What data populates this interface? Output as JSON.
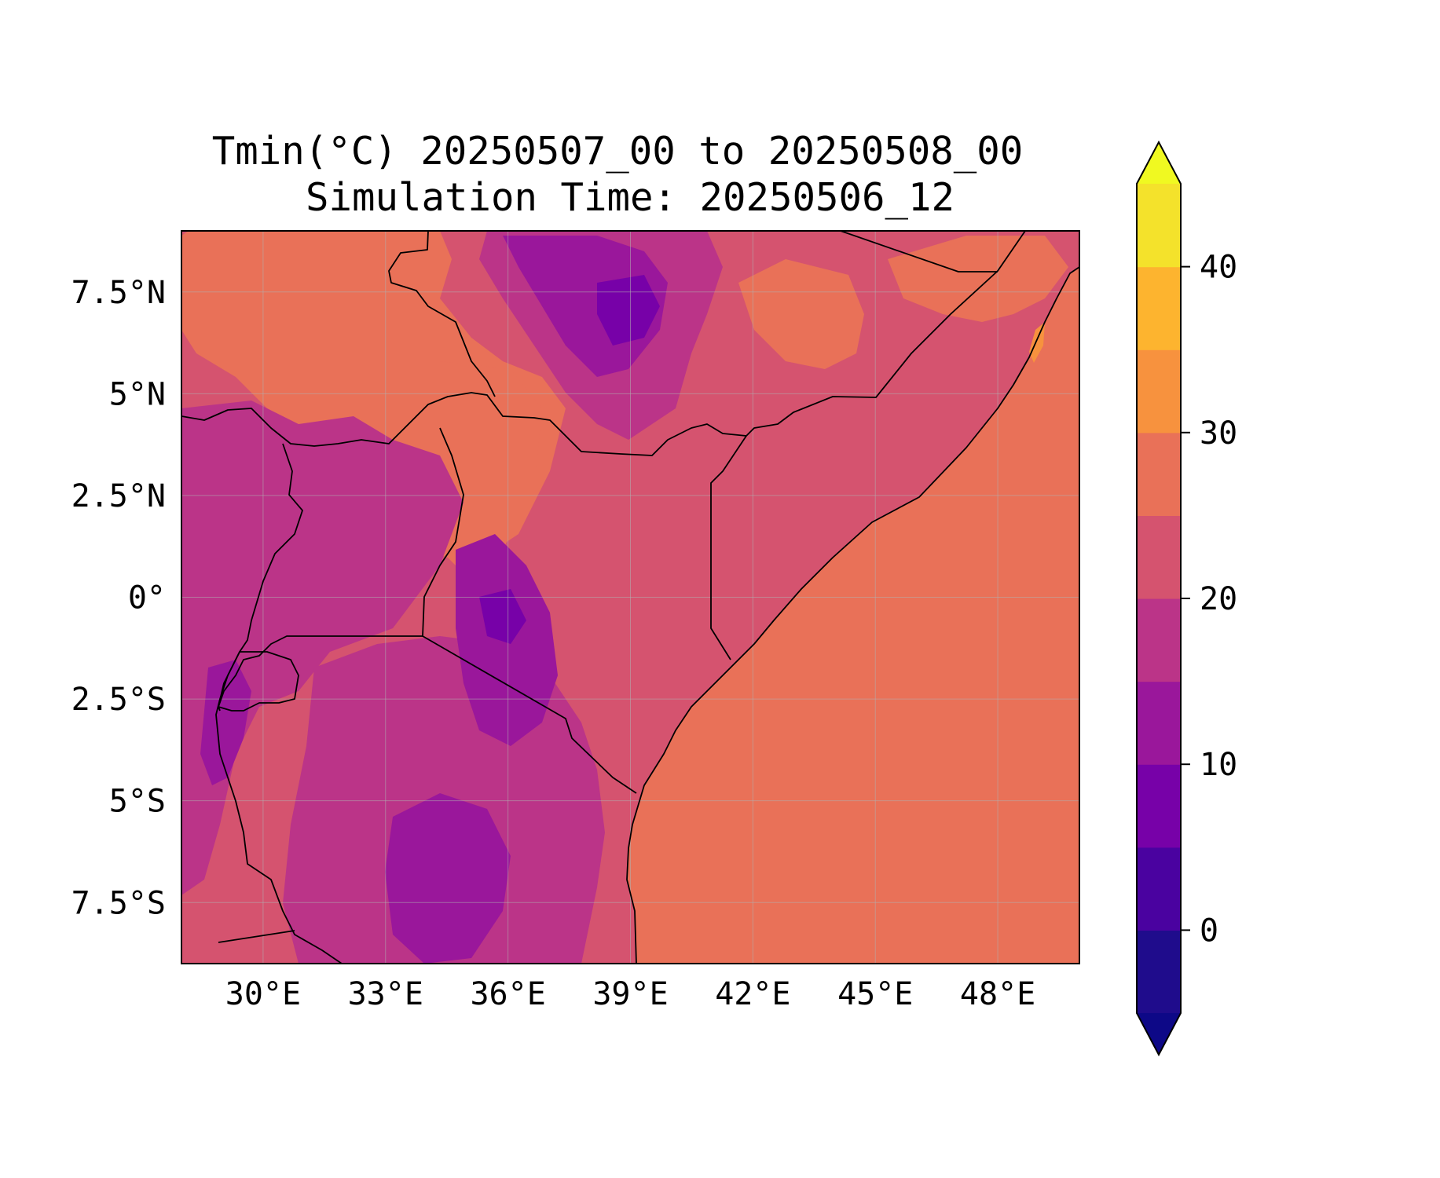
{
  "chart_data": {
    "type": "heatmap",
    "title": "Tmin(°C) 20250507_00 to 20250508_00",
    "subtitle": "Simulation Time: 20250506_12",
    "variable": "Tmin",
    "units": "°C",
    "map_extent": {
      "lon": [
        28.0,
        50.0
      ],
      "lat": [
        -9.0,
        9.0
      ]
    },
    "x_ticks": [
      {
        "value": 30,
        "label": "30°E"
      },
      {
        "value": 33,
        "label": "33°E"
      },
      {
        "value": 36,
        "label": "36°E"
      },
      {
        "value": 39,
        "label": "39°E"
      },
      {
        "value": 42,
        "label": "42°E"
      },
      {
        "value": 45,
        "label": "45°E"
      },
      {
        "value": 48,
        "label": "48°E"
      }
    ],
    "y_ticks": [
      {
        "value": 7.5,
        "label": "7.5°N"
      },
      {
        "value": 5,
        "label": "5°N"
      },
      {
        "value": 2.5,
        "label": "2.5°N"
      },
      {
        "value": 0,
        "label": "0°"
      },
      {
        "value": -2.5,
        "label": "2.5°S"
      },
      {
        "value": -5,
        "label": "5°S"
      },
      {
        "value": -7.5,
        "label": "7.5°S"
      }
    ],
    "grid": true,
    "colorbar": {
      "placement": "right",
      "cmap": "plasma",
      "range": [
        -5,
        45
      ],
      "extend": "both",
      "levels": [
        -5,
        0,
        5,
        10,
        15,
        20,
        25,
        30,
        35,
        40,
        45
      ],
      "colors": [
        "#1f0c8c",
        "#4a02a0",
        "#7701a8",
        "#9a179b",
        "#bb3488",
        "#d5536f",
        "#e97158",
        "#f7923e",
        "#fdb42f",
        "#f4e22b"
      ],
      "under_color": "#0d0887",
      "over_color": "#f0f921",
      "tick_values": [
        0,
        10,
        20,
        30,
        40
      ],
      "tick_labels": [
        "0",
        "10",
        "20",
        "30",
        "40"
      ]
    },
    "field_colors": {
      "ocean": "#e97158",
      "lowland": "#d5536f",
      "warm": "#e97158",
      "highland": "#bb3488",
      "cool": "#9a179b",
      "cold": "#7701a8",
      "hot": "#f7923e"
    }
  }
}
